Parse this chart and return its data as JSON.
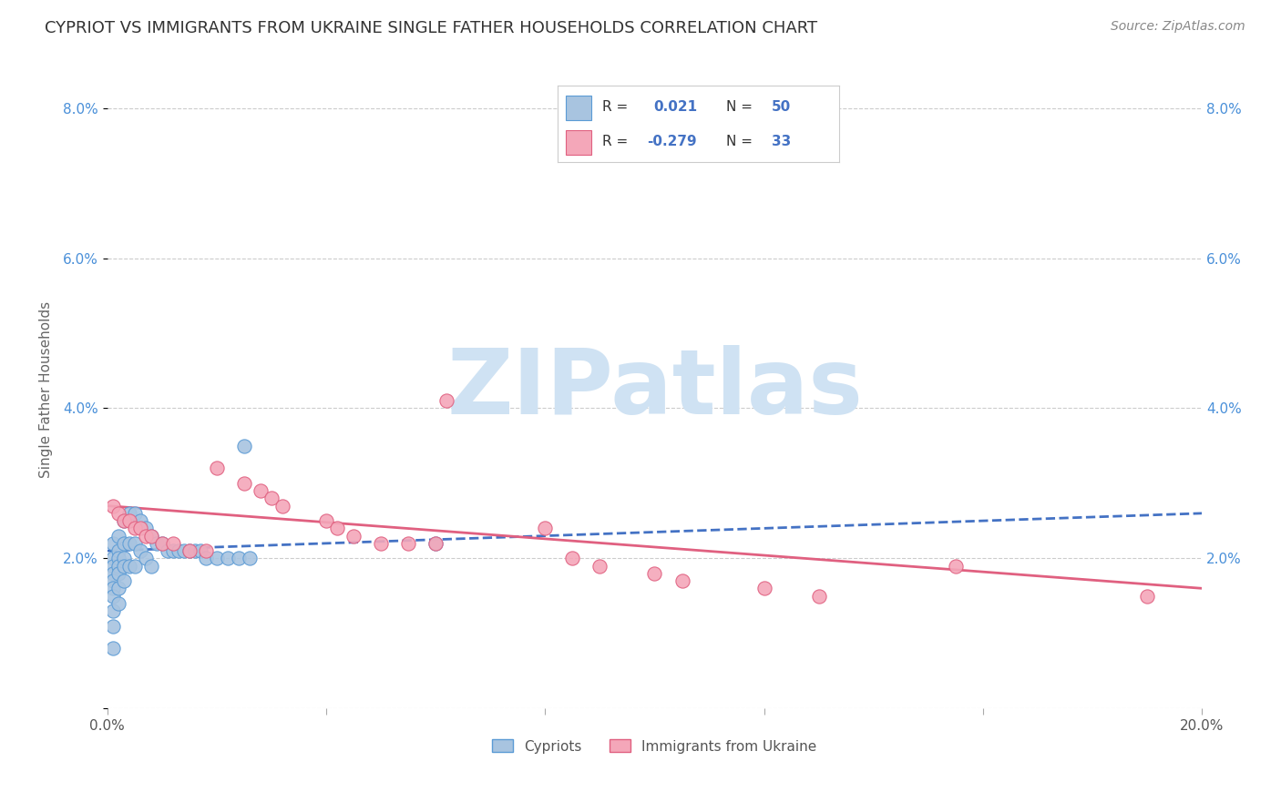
{
  "title": "CYPRIOT VS IMMIGRANTS FROM UKRAINE SINGLE FATHER HOUSEHOLDS CORRELATION CHART",
  "source": "Source: ZipAtlas.com",
  "ylabel": "Single Father Households",
  "xlim": [
    0.0,
    0.2
  ],
  "ylim": [
    0.0,
    0.085
  ],
  "xtick_vals": [
    0.0,
    0.04,
    0.08,
    0.12,
    0.16,
    0.2
  ],
  "xtick_labels": [
    "0.0%",
    "",
    "",
    "",
    "",
    "20.0%"
  ],
  "ytick_vals": [
    0.0,
    0.02,
    0.04,
    0.06,
    0.08
  ],
  "ytick_labels": [
    "",
    "2.0%",
    "4.0%",
    "6.0%",
    "8.0%"
  ],
  "cypriot_color": "#a8c4e0",
  "ukraine_color": "#f4a7b9",
  "cypriot_edge_color": "#5b9bd5",
  "ukraine_edge_color": "#e06080",
  "cypriot_line_color": "#4472c4",
  "ukraine_line_color": "#e06080",
  "R_cypriot": "0.021",
  "N_cypriot": "50",
  "R_ukraine": "-0.279",
  "N_ukraine": "33",
  "watermark": "ZIPatlas",
  "watermark_color": "#cfe2f3",
  "grid_color": "#cccccc",
  "cypriot_x": [
    0.001,
    0.001,
    0.001,
    0.001,
    0.001,
    0.001,
    0.001,
    0.001,
    0.001,
    0.001,
    0.002,
    0.002,
    0.002,
    0.002,
    0.002,
    0.002,
    0.002,
    0.003,
    0.003,
    0.003,
    0.003,
    0.003,
    0.004,
    0.004,
    0.004,
    0.005,
    0.005,
    0.005,
    0.006,
    0.006,
    0.007,
    0.007,
    0.008,
    0.008,
    0.009,
    0.01,
    0.011,
    0.012,
    0.013,
    0.014,
    0.015,
    0.016,
    0.017,
    0.018,
    0.02,
    0.022,
    0.024,
    0.025,
    0.026,
    0.06
  ],
  "cypriot_y": [
    0.022,
    0.02,
    0.019,
    0.018,
    0.017,
    0.016,
    0.015,
    0.013,
    0.011,
    0.008,
    0.023,
    0.021,
    0.02,
    0.019,
    0.018,
    0.016,
    0.014,
    0.025,
    0.022,
    0.02,
    0.019,
    0.017,
    0.026,
    0.022,
    0.019,
    0.026,
    0.022,
    0.019,
    0.025,
    0.021,
    0.024,
    0.02,
    0.023,
    0.019,
    0.022,
    0.022,
    0.021,
    0.021,
    0.021,
    0.021,
    0.021,
    0.021,
    0.021,
    0.02,
    0.02,
    0.02,
    0.02,
    0.035,
    0.02,
    0.022
  ],
  "ukraine_x": [
    0.001,
    0.002,
    0.003,
    0.004,
    0.005,
    0.006,
    0.007,
    0.008,
    0.01,
    0.012,
    0.015,
    0.018,
    0.02,
    0.025,
    0.028,
    0.03,
    0.032,
    0.04,
    0.042,
    0.045,
    0.05,
    0.055,
    0.06,
    0.062,
    0.08,
    0.085,
    0.09,
    0.1,
    0.105,
    0.12,
    0.13,
    0.155,
    0.19
  ],
  "ukraine_y": [
    0.027,
    0.026,
    0.025,
    0.025,
    0.024,
    0.024,
    0.023,
    0.023,
    0.022,
    0.022,
    0.021,
    0.021,
    0.032,
    0.03,
    0.029,
    0.028,
    0.027,
    0.025,
    0.024,
    0.023,
    0.022,
    0.022,
    0.022,
    0.041,
    0.024,
    0.02,
    0.019,
    0.018,
    0.017,
    0.016,
    0.015,
    0.019,
    0.015
  ]
}
